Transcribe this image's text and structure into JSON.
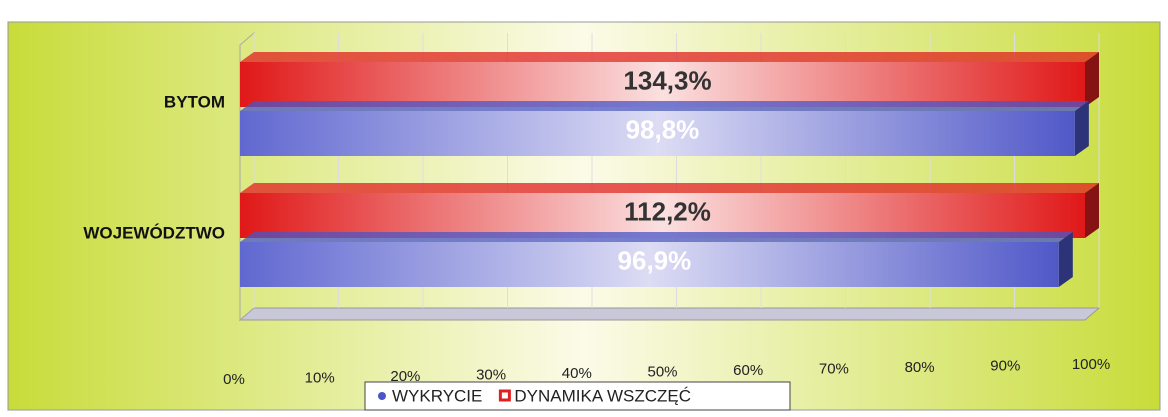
{
  "chart_data": {
    "type": "bar",
    "orientation": "horizontal",
    "categories": [
      "BYTOM",
      "WOJEWÓDZTWO"
    ],
    "series": [
      {
        "name": "WYKRYCIE",
        "color": "#4a55c8",
        "values": [
          98.8,
          96.9
        ],
        "value_labels": [
          "98,8%",
          "96,9%"
        ]
      },
      {
        "name": "DYNAMIKA WSZCZĘĆ",
        "color": "#e02020",
        "values": [
          134.3,
          112.2
        ],
        "value_labels": [
          "134,3%",
          "112,2%"
        ]
      }
    ],
    "xlim": [
      0,
      100
    ],
    "xticks": [
      {
        "value": 0,
        "label": "0%"
      },
      {
        "value": 10,
        "label": "10%"
      },
      {
        "value": 20,
        "label": "20%"
      },
      {
        "value": 30,
        "label": "30%"
      },
      {
        "value": 40,
        "label": "40%"
      },
      {
        "value": 50,
        "label": "50%"
      },
      {
        "value": 60,
        "label": "60%"
      },
      {
        "value": 70,
        "label": "70%"
      },
      {
        "value": 80,
        "label": "80%"
      },
      {
        "value": 90,
        "label": "90%"
      },
      {
        "value": 100,
        "label": "100%"
      }
    ],
    "grid": true,
    "legend": "bottom"
  }
}
